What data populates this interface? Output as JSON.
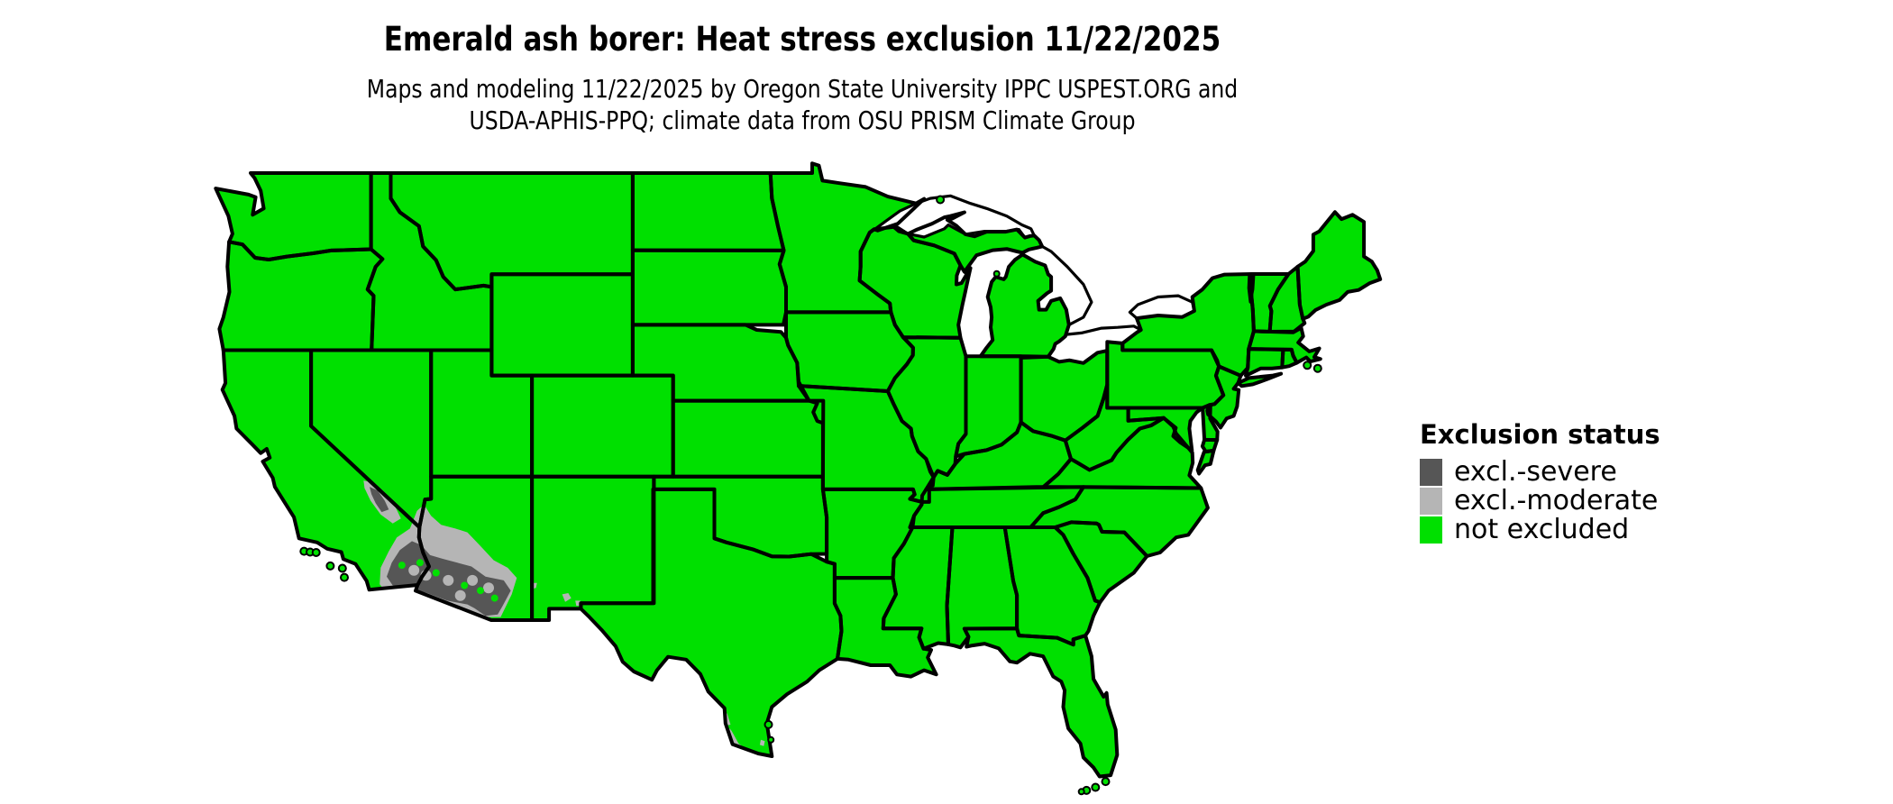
{
  "header": {
    "title": "Emerald ash borer: Heat stress exclusion 11/22/2025",
    "subtitle_line1": "Maps and modeling 11/22/2025 by Oregon State University IPPC USPEST.ORG and",
    "subtitle_line2": "USDA-APHIS-PPQ; climate data from OSU PRISM Climate Group"
  },
  "legend": {
    "title": "Exclusion status",
    "items": [
      {
        "label": "excl.-severe",
        "color": "#565656"
      },
      {
        "label": "excl.-moderate",
        "color": "#b5b5b5"
      },
      {
        "label": "not excluded",
        "color": "#00e000"
      }
    ]
  },
  "map": {
    "colors": {
      "not_excluded": "#00e000",
      "moderate": "#b5b5b5",
      "severe": "#565656",
      "border": "#000000",
      "water": "#ffffff"
    }
  }
}
